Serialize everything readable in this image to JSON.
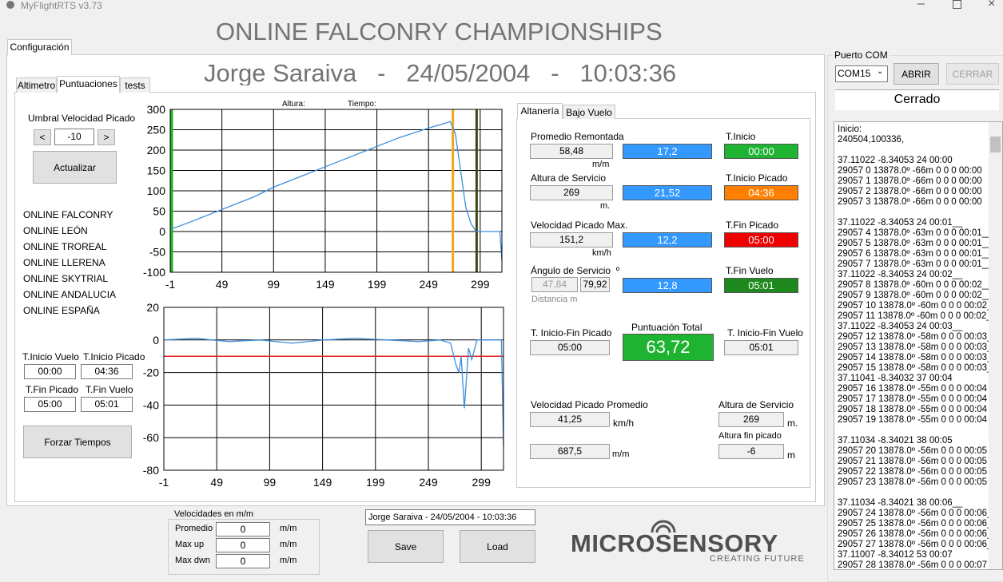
{
  "window": {
    "title": "MyFlightRTS v3.73"
  },
  "header": {
    "title": "ONLINE FALCONRY CHAMPIONSHIPS",
    "subtitle": "Jorge Saraiva   -   24/05/2004   -   10:03:36"
  },
  "tabs": {
    "outer": [
      "Configuración"
    ],
    "inner": [
      "Altimetro",
      "Puntuaciones",
      "tests"
    ],
    "detail": [
      "Altanería",
      "Bajo Vuelo"
    ]
  },
  "left": {
    "threshold_label": "Umbral Velocidad Picado",
    "dec": "<",
    "inc": ">",
    "threshold": "-10",
    "update": "Actualizar",
    "championships": [
      "ONLINE FALCONRY",
      "ONLINE LEÓN",
      "ONLINE TROREAL",
      "ONLINE LLERENA",
      "ONLINE SKYTRIAL",
      "ONLINE ANDALUCIA",
      "ONLINE ESPAÑA"
    ],
    "times": [
      {
        "label": "T.Inicio Vuelo",
        "value": "00:00"
      },
      {
        "label": "T.Inicio Picado",
        "value": "04:36"
      },
      {
        "label": "T.Fin Picado",
        "value": "05:00"
      },
      {
        "label": "T.Fin Vuelo",
        "value": "05:01"
      }
    ],
    "force": "Forzar Tiempos"
  },
  "chart_data": [
    {
      "type": "line",
      "annotations": [
        "Altura:",
        "Tiempo:"
      ],
      "xlim": [
        -1,
        320
      ],
      "xticks": [
        -1,
        49,
        99,
        149,
        199,
        249,
        299
      ],
      "ylim": [
        -100,
        300
      ],
      "yticks": [
        -100,
        -50,
        0,
        50,
        100,
        150,
        200,
        250,
        300
      ],
      "grid": true,
      "x": [
        -1,
        20,
        50,
        80,
        100,
        130,
        160,
        190,
        220,
        250,
        260,
        270,
        275,
        280,
        285,
        290,
        295,
        300,
        318,
        320
      ],
      "series": [
        {
          "color": "#3c8fdc",
          "values": [
            5,
            25,
            55,
            85,
            110,
            140,
            170,
            200,
            230,
            255,
            262,
            270,
            240,
            150,
            60,
            20,
            0,
            0,
            0,
            -70
          ]
        }
      ],
      "markers": [
        {
          "x": -1,
          "color": "#22b022"
        },
        {
          "x": 271,
          "color": "#f0a818"
        },
        {
          "x": 294,
          "color": "#3a4a10"
        }
      ]
    },
    {
      "type": "line",
      "xlim": [
        -1,
        320
      ],
      "xticks": [
        -1,
        49,
        99,
        149,
        199,
        249,
        299
      ],
      "ylim": [
        -80,
        20
      ],
      "yticks": [
        -80,
        -60,
        -40,
        -20,
        0,
        20
      ],
      "grid": true,
      "x": [
        -1,
        30,
        60,
        90,
        120,
        150,
        180,
        210,
        240,
        260,
        270,
        275,
        278,
        280,
        283,
        287,
        290,
        295,
        300,
        318,
        320
      ],
      "series": [
        {
          "color": "#3c8fdc",
          "values": [
            0,
            1,
            -1,
            0,
            -2,
            0,
            1,
            0,
            -1,
            0,
            -2,
            -15,
            -20,
            -10,
            -42,
            -5,
            -12,
            0,
            0,
            0,
            -65
          ]
        }
      ],
      "hlines": [
        {
          "y": -10,
          "color": "#e02020"
        }
      ]
    }
  ],
  "altaneria": {
    "rows": [
      {
        "label": "Promedio Remontada",
        "value": "58,48",
        "unit": "m/m",
        "score": "17,2",
        "time_label": "T.Inicio",
        "time": "00:00"
      },
      {
        "label": "Altura de Servicio",
        "value": "269",
        "unit": "m.",
        "score": "21,52",
        "time_label": "T.Inicio Picado",
        "time": "04:36"
      },
      {
        "label": "Velocidad Picado Max.",
        "value": "151,2",
        "unit": "km/h",
        "score": "12,2",
        "time_label": "T.Fin Picado",
        "time": "05:00"
      },
      {
        "label": "Ángulo de Servicio  º",
        "value": "47,84",
        "value2": "79,92",
        "unit": "Distancia m",
        "score": "12,8",
        "time_label": "T.Fin Vuelo",
        "time": "05:01"
      }
    ],
    "dive_label": "T. Inicio-Fin Picado",
    "dive": "05:00",
    "total_label": "Puntuación Total",
    "total": "63,72",
    "flight_label": "T. Inicio-Fin Vuelo",
    "flight": "05:01",
    "avg_label": "Velocidad Picado Promedio",
    "avg": "41,25",
    "avg_unit": "km/h",
    "avg2": "687,5",
    "avg2_unit": "m/m",
    "alt_label": "Altura de Servicio",
    "alt": "269",
    "alt_unit": "m.",
    "end_label": "Altura fin picado",
    "end": "-6",
    "end_unit": "m"
  },
  "com": {
    "label": "Puerto COM",
    "port": "COM15",
    "open": "ABRIR",
    "close": "CERRAR",
    "status": "Cerrado",
    "log": [
      [
        "Inicio:",
        "240504,100336,"
      ],
      [
        "37.11022 -8.34053 24 00:00",
        "29057 0 13878.0º -66m 0 0 0 00:00",
        "29057 1 13878.0º -66m 0 0 0 00:00",
        "29057 2 13878.0º -66m 0 0 0 00:00",
        "29057 3 13878.0º -66m 0 0 0 00:00"
      ],
      [
        "37.11022 -8.34053 24 00:01__",
        "29057 4 13878.0º -63m 0 0 0 00:01__",
        "29057 5 13878.0º -63m 0 0 0 00:01__",
        "29057 6 13878.0º -63m 0 0 0 00:01__",
        "29057 7 13878.0º -63m 0 0 0 00:01__",
        "37.11022 -8.34053 24 00:02__",
        "29057 8 13878.0º -60m 0 0 0 00:02__",
        "29057 9 13878.0º -60m 0 0 0 00:02__",
        "29057 10 13878.0º -60m 0 0 0 00:02__",
        "29057 11 13878.0º -60m 0 0 0 00:02__",
        "37.11022 -8.34053 24 00:03__",
        "29057 12 13878.0º -58m 0 0 0 00:03__",
        "29057 13 13878.0º -58m 0 0 0 00:03__",
        "29057 14 13878.0º -58m 0 0 0 00:03__",
        "29057 15 13878.0º -58m 0 0 0 00:03__",
        "37.11041 -8.34032 37 00:04",
        "29057 16 13878.0º -55m 0 0 0 00:04",
        "29057 17 13878.0º -55m 0 0 0 00:04",
        "29057 18 13878.0º -55m 0 0 0 00:04",
        "29057 19 13878.0º -55m 0 0 0 00:04"
      ],
      [
        "37.11034 -8.34021 38 00:05",
        "29057 20 13878.0º -56m 0 0 0 00:05",
        "29057 21 13878.0º -56m 0 0 0 00:05",
        "29057 22 13878.0º -56m 0 0 0 00:05",
        "29057 23 13878.0º -56m 0 0 0 00:05"
      ],
      [
        "37.11034 -8.34021 38 00:06__",
        "29057 24 13878.0º -56m 0 0 0 00:06__",
        "29057 25 13878.0º -56m 0 0 0 00:06__",
        "29057 26 13878.0º -56m 0 0 0 00:06__",
        "29057 27 13878.0º -56m 0 0 0 00:06__",
        "37.11007 -8.34012 53 00:07",
        "29057 28 13878.0º -56m 0 0 0 00:07"
      ]
    ]
  },
  "bottom": {
    "speeds_title": "Velocidades en m/m",
    "speeds": [
      {
        "label": "Promedio",
        "value": "0",
        "unit": "m/m"
      },
      {
        "label": "Max up",
        "value": "0",
        "unit": "m/m"
      },
      {
        "label": "Max dwn",
        "value": "0",
        "unit": "m/m"
      }
    ],
    "session": "Jorge Saraiva  -  24/05/2004  -  10:03:36",
    "save": "Save",
    "load": "Load",
    "logo": "MICROSENSORY",
    "tagline": "CREATING FUTURE"
  }
}
